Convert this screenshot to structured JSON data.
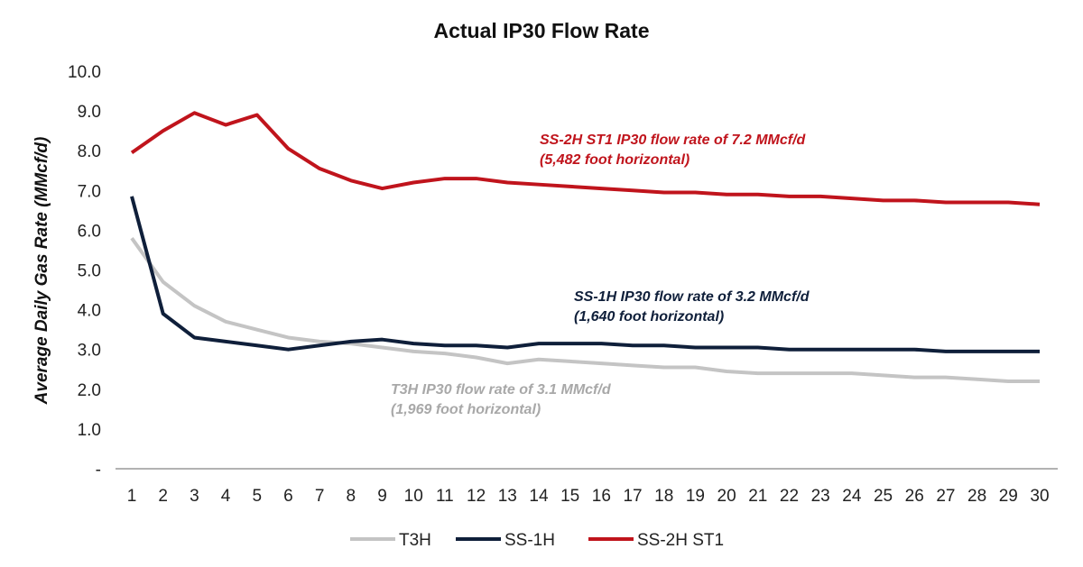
{
  "chart_data": {
    "type": "line",
    "title": "Actual IP30 Flow Rate",
    "xlabel": "",
    "ylabel": "Average Daily Gas Rate (MMcf/d)",
    "ylim": [
      0,
      10
    ],
    "y_ticks": [
      "-",
      "1.0",
      "2.0",
      "3.0",
      "4.0",
      "5.0",
      "6.0",
      "7.0",
      "8.0",
      "9.0",
      "10.0"
    ],
    "x": [
      1,
      2,
      3,
      4,
      5,
      6,
      7,
      8,
      9,
      10,
      11,
      12,
      13,
      14,
      15,
      16,
      17,
      18,
      19,
      20,
      21,
      22,
      23,
      24,
      25,
      26,
      27,
      28,
      29,
      30
    ],
    "grid": false,
    "legend_position": "bottom",
    "series": [
      {
        "name": "T3H",
        "color": "#c4c4c4",
        "values": [
          5.8,
          4.7,
          4.1,
          3.7,
          3.5,
          3.3,
          3.2,
          3.15,
          3.05,
          2.95,
          2.9,
          2.8,
          2.65,
          2.75,
          2.7,
          2.65,
          2.6,
          2.55,
          2.55,
          2.45,
          2.4,
          2.4,
          2.4,
          2.4,
          2.35,
          2.3,
          2.3,
          2.25,
          2.2,
          2.2
        ]
      },
      {
        "name": "SS-1H",
        "color": "#0f1f3a",
        "values": [
          6.85,
          3.9,
          3.3,
          3.2,
          3.1,
          3.0,
          3.1,
          3.2,
          3.25,
          3.15,
          3.1,
          3.1,
          3.05,
          3.15,
          3.15,
          3.15,
          3.1,
          3.1,
          3.05,
          3.05,
          3.05,
          3.0,
          3.0,
          3.0,
          3.0,
          3.0,
          2.95,
          2.95,
          2.95,
          2.95
        ]
      },
      {
        "name": "SS-2H ST1",
        "color": "#c0141c",
        "values": [
          7.95,
          8.5,
          8.95,
          8.65,
          8.9,
          8.05,
          7.55,
          7.25,
          7.05,
          7.2,
          7.3,
          7.3,
          7.2,
          7.15,
          7.1,
          7.05,
          7.0,
          6.95,
          6.95,
          6.9,
          6.9,
          6.85,
          6.85,
          6.8,
          6.75,
          6.75,
          6.7,
          6.7,
          6.7,
          6.65
        ]
      }
    ],
    "annotations": [
      {
        "lines": [
          "SS-2H ST1 IP30 flow rate of 7.2 MMcf/d",
          "(5,482 foot horizontal)"
        ],
        "color": "#c0141c"
      },
      {
        "lines": [
          "SS-1H IP30 flow rate of 3.2 MMcf/d",
          "(1,640 foot horizontal)"
        ],
        "color": "#0f1f3a"
      },
      {
        "lines": [
          "T3H IP30 flow rate of 3.1 MMcf/d",
          "(1,969 foot horizontal)"
        ],
        "color": "#a8a8a8"
      }
    ]
  }
}
